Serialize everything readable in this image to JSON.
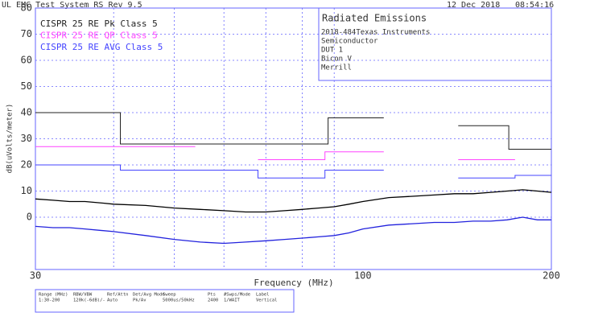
{
  "chart_data": {
    "type": "line",
    "header": {
      "title": "UL EMC Test System RS Rev 9.5",
      "date": "12 Dec 2018",
      "time": "08:54:16"
    },
    "xlabel": "Frequency (MHz)",
    "ylabel": "dB(uVolts/meter)",
    "xscale": "log",
    "xlim": [
      30,
      200
    ],
    "xticks": [
      30,
      100,
      200
    ],
    "xgrid": [
      40,
      50,
      60,
      70,
      80,
      90
    ],
    "ylim": [
      -20,
      80
    ],
    "yticks": [
      0,
      10,
      20,
      30,
      40,
      50,
      60,
      70,
      80
    ],
    "grid": true,
    "info_box": {
      "title": "Radiated Emissions",
      "lines": [
        "2018-484Texas Instruments",
        "Semiconductor",
        "DUT 1",
        "Bicon V",
        "Merrill"
      ]
    },
    "info_table": {
      "headers": [
        "Range (MHz)",
        "RBW/VBW",
        "Ref/Attn",
        "Det/Avg Mode",
        "Sweep",
        "Pts",
        "#Swps/Mode",
        "Label"
      ],
      "values": [
        "1:30-200",
        "120k(-6dB)/-",
        "Auto",
        "Pk/Av",
        "5000us/50kHz",
        "2400",
        "1/WAIT",
        "Vertical"
      ]
    },
    "series": [
      {
        "name": "CISPR 25 RE Pk Class 5",
        "color": "#222222",
        "x": [
          30,
          41,
          41,
          88,
          88,
          108,
          108,
          142,
          171,
          171,
          200
        ],
        "values": [
          40,
          40,
          28,
          28,
          38,
          38,
          null,
          35,
          35,
          26,
          26
        ]
      },
      {
        "name": "CISPR 25 RE QP Class 5",
        "color": "#ff44ff",
        "x": [
          30,
          54,
          54,
          68,
          87,
          87,
          108,
          108,
          142,
          175
        ],
        "values": [
          27,
          27,
          null,
          22,
          22,
          25,
          25,
          null,
          22,
          22
        ]
      },
      {
        "name": "CISPR 25 RE AVG Class 5",
        "color": "#4444ff",
        "x": [
          30,
          41,
          41,
          68,
          68,
          87,
          87,
          108,
          108,
          142,
          175,
          175,
          200
        ],
        "values": [
          20,
          20,
          18,
          18,
          15,
          15,
          18,
          18,
          null,
          15,
          15,
          16,
          16
        ]
      },
      {
        "color": "#000000",
        "x": [
          30,
          32,
          34,
          36,
          38,
          40,
          45,
          50,
          55,
          60,
          65,
          70,
          75,
          80,
          85,
          90,
          95,
          100,
          110,
          120,
          130,
          140,
          150,
          160,
          170,
          180,
          190,
          200
        ],
        "values": [
          7,
          6.5,
          6,
          6,
          5.5,
          5,
          4.5,
          3.5,
          3,
          2.5,
          2,
          2,
          2.5,
          3,
          3.5,
          4,
          5,
          6,
          7.5,
          8,
          8.5,
          9,
          9,
          9.5,
          10,
          10.5,
          10,
          9.5
        ]
      },
      {
        "color": "#2222dd",
        "x": [
          30,
          32,
          34,
          36,
          38,
          40,
          45,
          50,
          55,
          60,
          65,
          70,
          75,
          80,
          85,
          90,
          95,
          100,
          110,
          120,
          130,
          140,
          150,
          160,
          170,
          180,
          190,
          200
        ],
        "values": [
          -3.5,
          -4,
          -4,
          -4.5,
          -5,
          -5.5,
          -7,
          -8.5,
          -9.5,
          -10,
          -9.5,
          -9,
          -8.5,
          -8,
          -7.5,
          -7,
          -6,
          -4.5,
          -3,
          -2.5,
          -2,
          -2,
          -1.5,
          -1.5,
          -1,
          0,
          -1,
          -1
        ]
      }
    ]
  }
}
